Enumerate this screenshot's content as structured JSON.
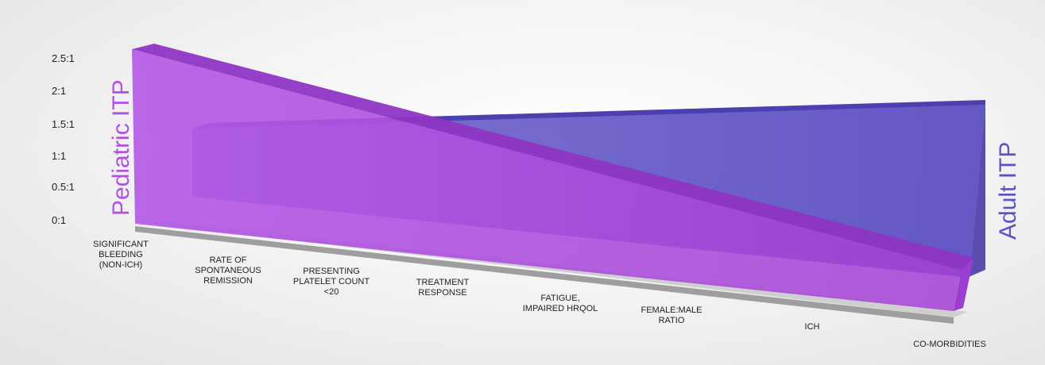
{
  "chart_data": {
    "type": "area",
    "yticks": [
      "0:1",
      "0.5:1",
      "1:1",
      "1.5:1",
      "2:1",
      "2.5:1"
    ],
    "ylim": [
      0,
      2.5
    ],
    "categories": [
      "SIGNIFICANT\nBLEEDING\n(NON-ICH)",
      "RATE OF\nSPONTANEOUS\nREMISSION",
      "PRESENTING\nPLATELET COUNT\n<20",
      "TREATMENT\nRESPONSE",
      "FATIGUE,\nIMPAIRED HRQOL",
      "FEMALE:MALE\nRATIO",
      "ICH",
      "CO-MORBIDITIES"
    ],
    "series": [
      {
        "name": "Pediatric ITP",
        "values": [
          2.6,
          2.3,
          2.0,
          1.6,
          1.3,
          1.0,
          0.6,
          0.3
        ],
        "color": "#a34fd6"
      },
      {
        "name": "Adult ITP",
        "values": [
          1.3,
          1.3,
          1.4,
          1.5,
          1.5,
          1.6,
          1.6,
          1.7
        ],
        "color": "#5a4fbd"
      }
    ],
    "colors": {
      "pediatric": "#b14fe0",
      "adult": "#5d52c4",
      "floor": "#bdbdbd"
    }
  }
}
